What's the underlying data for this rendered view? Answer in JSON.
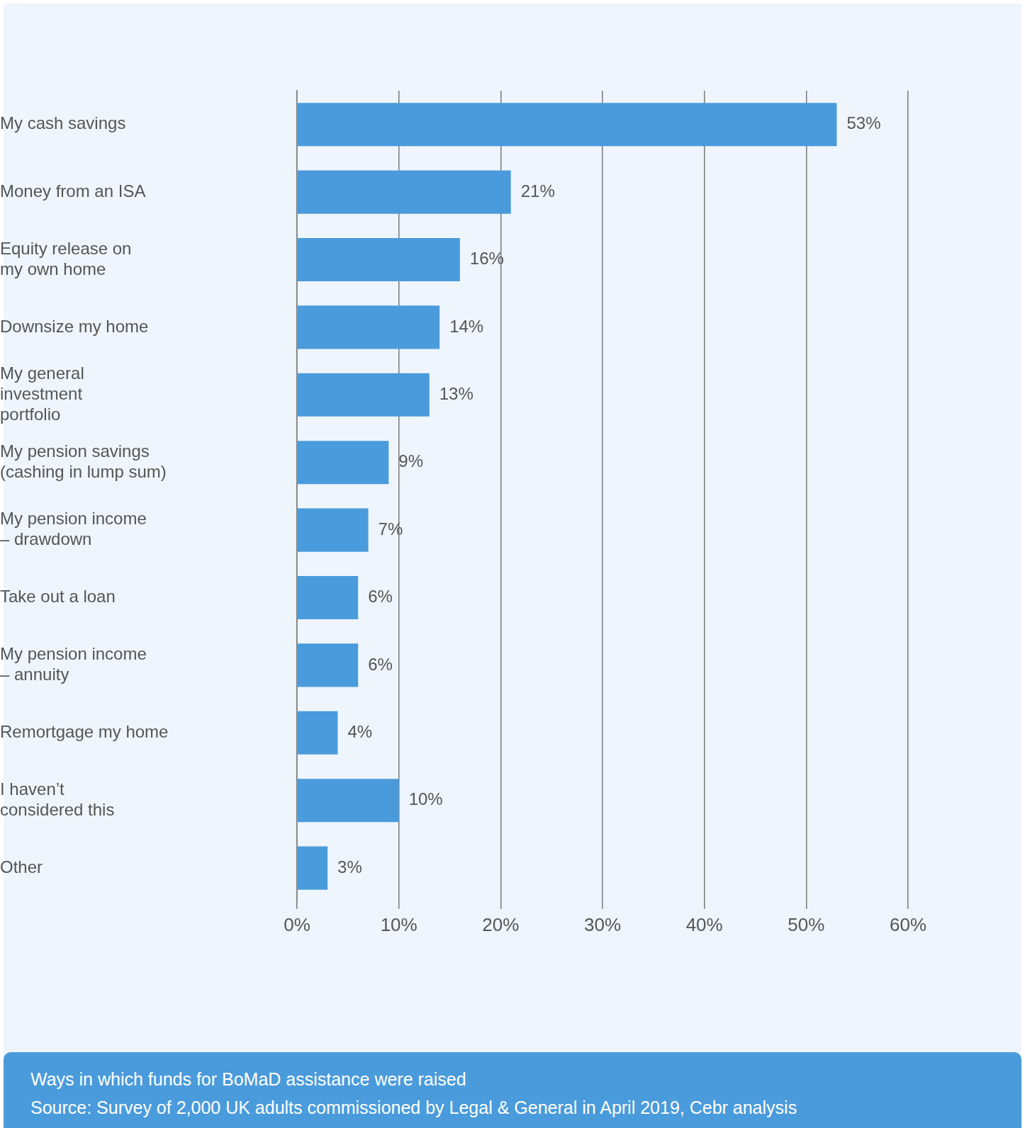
{
  "chart_data": {
    "type": "bar",
    "orientation": "horizontal",
    "title": "Ways in which funds for BoMaD assistance were raised",
    "source": "Source: Survey of 2,000 UK adults commissioned by Legal & General in April 2019, Cebr analysis",
    "categories": [
      "My cash savings",
      "Money from an ISA",
      "Equity release on my own home",
      "Downsize my home",
      "My general investment portfolio",
      "My pension savings (cashing in lump sum)",
      "My pension income – drawdown",
      "Take out a loan",
      "My pension income – annuity",
      "Remortgage my home",
      "I haven’t considered this",
      "Other"
    ],
    "values": [
      53,
      21,
      16,
      14,
      13,
      9,
      7,
      6,
      6,
      4,
      10,
      3
    ],
    "value_labels": [
      "53%",
      "21%",
      "16%",
      "14%",
      "13%",
      "9%",
      "7%",
      "6%",
      "6%",
      "4%",
      "10%",
      "3%"
    ],
    "data_labels": true,
    "color": "#4a9bdb",
    "xlim": [
      0,
      60
    ],
    "xticks": [
      {
        "value": 0,
        "label": "0%"
      },
      {
        "value": 10,
        "label": "10%"
      },
      {
        "value": 20,
        "label": "20%"
      },
      {
        "value": 30,
        "label": "30%"
      },
      {
        "value": 40,
        "label": "40%"
      },
      {
        "value": 50,
        "label": "50%"
      },
      {
        "value": 60,
        "label": "60%"
      }
    ],
    "grid": true
  }
}
